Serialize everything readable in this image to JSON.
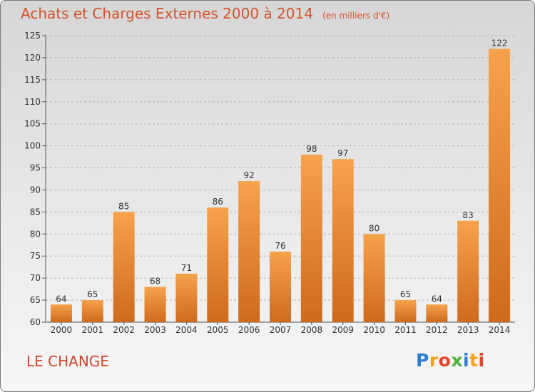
{
  "header": {
    "title": "Achats et Charges Externes 2000 à 2014",
    "unit": "(en milliers d'€)"
  },
  "footer": {
    "town": "LE CHANGE",
    "logo_letters": [
      {
        "char": "P",
        "color": "#2e7fd4"
      },
      {
        "char": "r",
        "color": "#f4a21a"
      },
      {
        "char": "o",
        "color": "#e8412b"
      },
      {
        "char": "x",
        "color": "#4bb33a"
      },
      {
        "char": "i",
        "color": "#2e7fd4"
      },
      {
        "char": "t",
        "color": "#f4a21a"
      },
      {
        "char": "i",
        "color": "#e8412b"
      }
    ]
  },
  "colors": {
    "bar_top": "#f6a24c",
    "bar_bottom": "#cf6a1c",
    "grid": "#b5b5b5"
  },
  "chart_data": {
    "type": "bar",
    "categories": [
      "2000",
      "2001",
      "2002",
      "2003",
      "2004",
      "2005",
      "2006",
      "2007",
      "2008",
      "2009",
      "2010",
      "2011",
      "2012",
      "2013",
      "2014"
    ],
    "values": [
      64,
      65,
      85,
      68,
      71,
      86,
      92,
      76,
      98,
      97,
      80,
      65,
      64,
      83,
      122
    ],
    "ylim": [
      60,
      125
    ],
    "yticks": [
      60,
      65,
      70,
      75,
      80,
      85,
      90,
      95,
      100,
      105,
      110,
      115,
      120,
      125
    ],
    "grid": true
  }
}
